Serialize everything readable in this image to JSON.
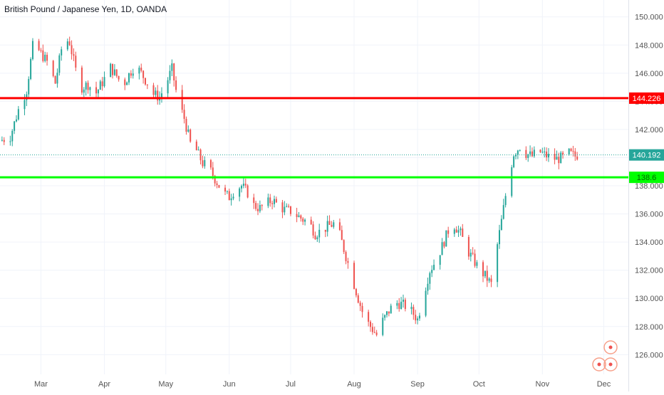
{
  "header": {
    "title": "British Pound / Japanese Yen, 1D, OANDA"
  },
  "colors": {
    "up": "#26a69a",
    "down": "#ef5350",
    "resistance": "#ff0000",
    "support": "#00ff00",
    "price_line": "#26a69a",
    "grid": "#f0f3fa",
    "axis_text": "#555555"
  },
  "chart_data": {
    "type": "candlestick",
    "symbol": "British Pound / Japanese Yen",
    "timeframe": "1D",
    "source": "OANDA",
    "ylim": [
      124.6,
      151.2
    ],
    "y_ticks": [
      126,
      128,
      130,
      132,
      134,
      136,
      138,
      140,
      142,
      144,
      146,
      148,
      150
    ],
    "y_tick_labels": [
      "126.000",
      "128.000",
      "130.000",
      "132.000",
      "134.000",
      "136.000",
      "138.000",
      "140.000",
      "142.000",
      "144.000",
      "146.000",
      "148.000",
      "150.000"
    ],
    "x_ticks": [
      "Mar",
      "Apr",
      "May",
      "Jun",
      "Jul",
      "Aug",
      "Sep",
      "Oct",
      "Nov",
      "Dec"
    ],
    "x_tick_days": [
      15,
      46,
      76,
      107,
      137,
      168,
      199,
      229,
      260,
      290
    ],
    "x_range_days": [
      -5,
      302
    ],
    "horizontal_lines": [
      {
        "name": "resistance",
        "value": 144.226,
        "label": "144.226",
        "color": "#ff0000"
      },
      {
        "name": "support",
        "value": 138.6,
        "label": "138.6",
        "color": "#00ff00"
      }
    ],
    "last_price": {
      "value": 140.192,
      "label": "140.192"
    },
    "close_path": [
      [
        -5,
        141.2
      ],
      [
        0,
        141.5
      ],
      [
        4,
        143.4
      ],
      [
        8,
        144.8
      ],
      [
        11,
        147.9
      ],
      [
        14,
        147.6
      ],
      [
        18,
        146.8
      ],
      [
        22,
        145.3
      ],
      [
        26,
        148.5
      ],
      [
        29,
        148.2
      ],
      [
        32,
        146.2
      ],
      [
        35,
        145.0
      ],
      [
        38,
        145.2
      ],
      [
        42,
        144.6
      ],
      [
        46,
        145.6
      ],
      [
        49,
        146.4
      ],
      [
        52,
        145.8
      ],
      [
        55,
        145.1
      ],
      [
        58,
        145.9
      ],
      [
        61,
        146.6
      ],
      [
        64,
        146.0
      ],
      [
        67,
        145.3
      ],
      [
        70,
        144.5
      ],
      [
        73,
        144.3
      ],
      [
        76,
        145.2
      ],
      [
        79,
        146.3
      ],
      [
        82,
        144.0
      ],
      [
        85,
        142.8
      ],
      [
        88,
        141.0
      ],
      [
        91,
        140.5
      ],
      [
        94,
        139.6
      ],
      [
        97,
        139.3
      ],
      [
        100,
        138.5
      ],
      [
        104,
        137.5
      ],
      [
        107,
        137.2
      ],
      [
        110,
        137.8
      ],
      [
        113,
        138.0
      ],
      [
        116,
        137.5
      ],
      [
        119,
        136.6
      ],
      [
        122,
        136.4
      ],
      [
        125,
        136.7
      ],
      [
        128,
        137.0
      ],
      [
        131,
        136.6
      ],
      [
        134,
        136.3
      ],
      [
        137,
        136.2
      ],
      [
        140,
        135.9
      ],
      [
        143,
        135.6
      ],
      [
        146,
        135.4
      ],
      [
        149,
        134.6
      ],
      [
        152,
        134.8
      ],
      [
        155,
        135.1
      ],
      [
        158,
        135.3
      ],
      [
        161,
        134.5
      ],
      [
        164,
        133.0
      ],
      [
        167,
        131.5
      ],
      [
        170,
        130.0
      ],
      [
        173,
        128.6
      ],
      [
        176,
        128.0
      ],
      [
        179,
        127.4
      ],
      [
        182,
        128.4
      ],
      [
        185,
        129.1
      ],
      [
        188,
        129.7
      ],
      [
        191,
        129.6
      ],
      [
        194,
        129.4
      ],
      [
        197,
        128.9
      ],
      [
        199,
        128.5
      ],
      [
        202,
        130.3
      ],
      [
        205,
        132.0
      ],
      [
        208,
        132.7
      ],
      [
        211,
        133.7
      ],
      [
        214,
        134.8
      ],
      [
        217,
        135.2
      ],
      [
        220,
        134.6
      ],
      [
        223,
        133.5
      ],
      [
        226,
        132.8
      ],
      [
        229,
        132.1
      ],
      [
        232,
        131.6
      ],
      [
        235,
        131.0
      ],
      [
        238,
        133.8
      ],
      [
        240,
        135.5
      ],
      [
        243,
        138.2
      ],
      [
        246,
        140.3
      ],
      [
        249,
        140.8
      ],
      [
        252,
        140.3
      ],
      [
        255,
        140.1
      ],
      [
        258,
        140.5
      ],
      [
        261,
        140.2
      ],
      [
        264,
        140.0
      ],
      [
        267,
        139.9
      ],
      [
        270,
        140.0
      ],
      [
        273,
        140.3
      ],
      [
        276,
        140.1
      ],
      [
        277,
        140.19
      ]
    ]
  }
}
